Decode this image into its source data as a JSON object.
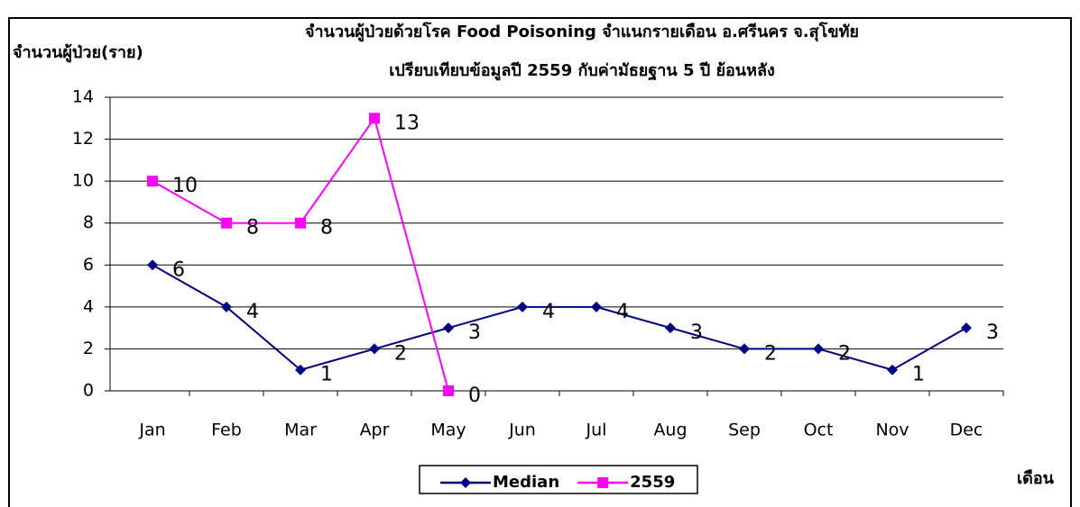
{
  "chart_data": {
    "type": "line",
    "title": "จำนวนผู้ป่วยด้วยโรค  Food Poisoning  จำแนกรายเดือน     อ.ศรีนคร จ.สุโขทัย",
    "subtitle": "เปรียบเทียบข้อมูลปี  2559  กับค่ามัธยฐาน 5 ปี ย้อนหลัง",
    "y_label": "จำนวนผู้ป่วย(ราย)",
    "x_label": "เดือน",
    "categories": [
      "Jan",
      "Feb",
      "Mar",
      "Apr",
      "May",
      "Jun",
      "Jul",
      "Aug",
      "Sep",
      "Oct",
      "Nov",
      "Dec"
    ],
    "series": [
      {
        "name": "Median",
        "color": "#000080",
        "marker": "diamond",
        "values": [
          6,
          4,
          1,
          2,
          3,
          4,
          4,
          3,
          2,
          2,
          1,
          3
        ]
      },
      {
        "name": "2559",
        "color": "#ff00ff",
        "marker": "square",
        "values": [
          10,
          8,
          8,
          13,
          0,
          null,
          null,
          null,
          null,
          null,
          null,
          null
        ]
      }
    ],
    "ylim": [
      0,
      14
    ],
    "yticks": [
      0,
      2,
      4,
      6,
      8,
      10,
      12,
      14
    ],
    "grid": true,
    "legend": "bottom"
  }
}
